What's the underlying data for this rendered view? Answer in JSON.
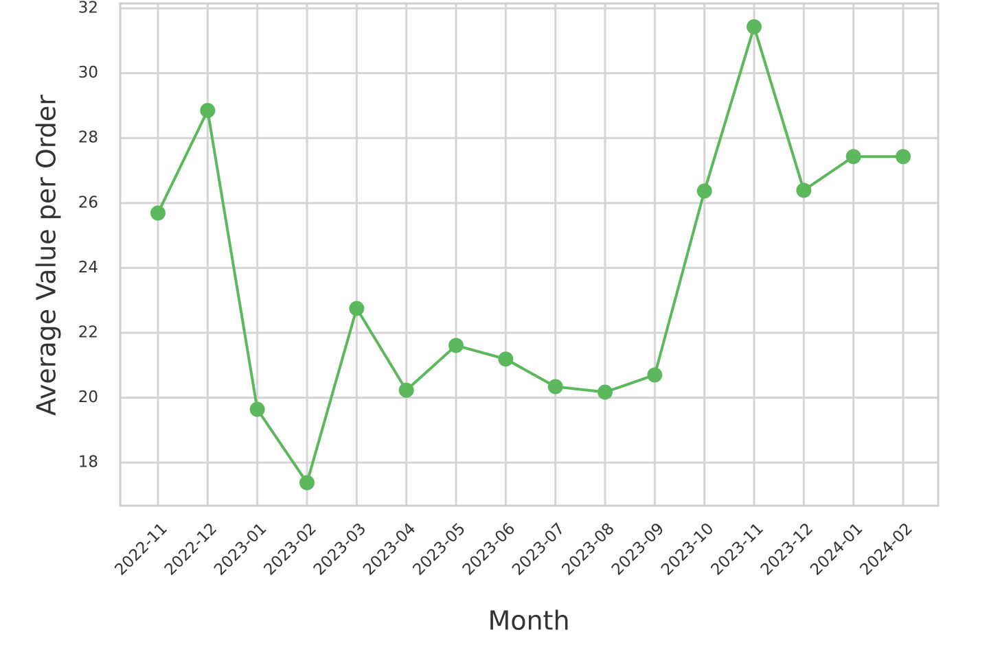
{
  "chart_data": {
    "type": "line",
    "y_label": "Average Value per Order",
    "x_label": "Month",
    "categories": [
      "2022-11",
      "2022-12",
      "2023-01",
      "2023-02",
      "2023-03",
      "2023-04",
      "2023-05",
      "2023-06",
      "2023-07",
      "2023-08",
      "2023-09",
      "2023-10",
      "2023-11",
      "2023-12",
      "2024-01",
      "2024-02"
    ],
    "values": [
      25.69,
      28.85,
      19.64,
      17.38,
      22.75,
      20.23,
      21.61,
      21.19,
      20.34,
      20.17,
      20.7,
      26.37,
      31.43,
      26.39,
      27.43,
      27.43
    ],
    "color": "#5cb85c",
    "ylim": [
      16.67,
      32.15
    ],
    "yticks": [
      18,
      20,
      22,
      24,
      26,
      28,
      30,
      32
    ],
    "grid": true
  }
}
